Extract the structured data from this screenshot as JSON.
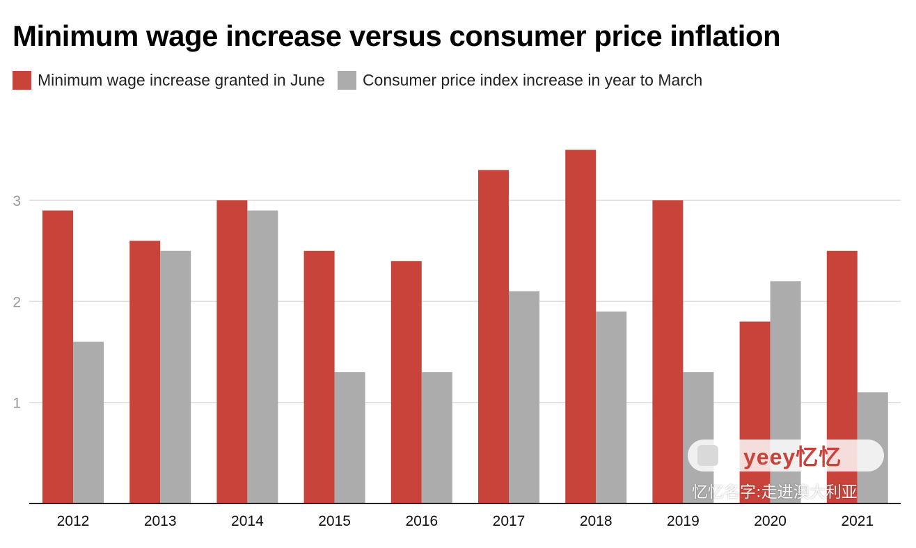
{
  "chart_data": {
    "type": "bar",
    "title": "Minimum wage increase versus consumer price inflation",
    "categories": [
      "2012",
      "2013",
      "2014",
      "2015",
      "2016",
      "2017",
      "2018",
      "2019",
      "2020",
      "2021"
    ],
    "series": [
      {
        "name": "Minimum wage increase granted in June",
        "color": "#c8433a",
        "values": [
          2.9,
          2.6,
          3.0,
          2.5,
          2.4,
          3.3,
          3.5,
          3.0,
          1.8,
          2.5
        ]
      },
      {
        "name": "Consumer price index increase in year to March",
        "color": "#acacac",
        "values": [
          1.6,
          2.5,
          2.9,
          1.3,
          1.3,
          2.1,
          1.9,
          1.3,
          2.2,
          1.1
        ]
      }
    ],
    "yticks": [
      1,
      2,
      3
    ],
    "ylim": [
      0,
      4
    ],
    "grid": true,
    "legend_position": "top-left",
    "xlabel": "",
    "ylabel": ""
  },
  "watermark": {
    "logo_text": "yeey忆忆",
    "caption": "忆忆名字:走进澳大利亚",
    "icon": "app-icon"
  }
}
